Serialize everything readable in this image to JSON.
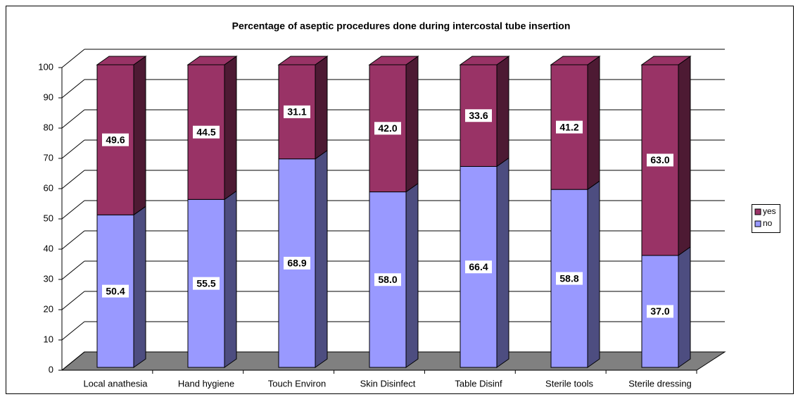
{
  "chart_data": {
    "type": "bar3d_stacked",
    "title": "Percentage of aseptic procedures done during intercostal tube insertion",
    "categories": [
      "Local anathesia",
      "Hand hygiene",
      "Touch Environ",
      "Skin Disinfect",
      "Table Disinf",
      "Sterile tools",
      "Sterile dressing"
    ],
    "series": [
      {
        "name": "no",
        "color": "#9999ff",
        "side": "#4d4d80",
        "values": [
          50.4,
          55.5,
          68.9,
          58.0,
          66.4,
          58.8,
          37.0
        ],
        "value_labels": [
          "50.4",
          "55.5",
          "68.9",
          "58.0",
          "66.4",
          "58.8",
          "37.0"
        ]
      },
      {
        "name": "yes",
        "color": "#993366",
        "side": "#4d1a33",
        "values": [
          49.6,
          44.5,
          31.1,
          42.0,
          33.6,
          41.2,
          63.0
        ],
        "value_labels": [
          "49.6",
          "44.5",
          "31.1",
          "42.0",
          "33.6",
          "41.2",
          "63.0"
        ]
      }
    ],
    "ylim": [
      0,
      100
    ],
    "yticks": [
      0,
      10,
      20,
      30,
      40,
      50,
      60,
      70,
      80,
      90,
      100
    ],
    "grid": true,
    "legend": "right"
  }
}
